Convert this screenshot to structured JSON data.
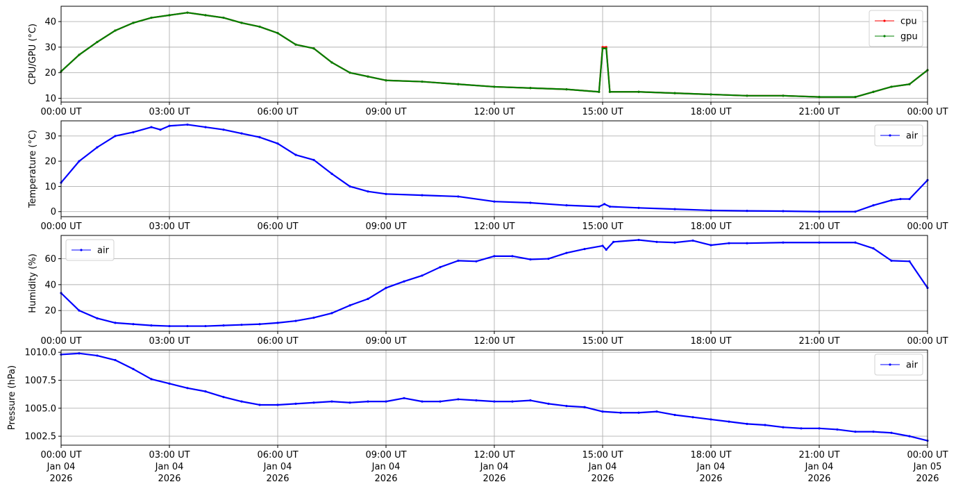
{
  "chart_data": [
    {
      "type": "line",
      "ylabel": "CPU/GPU (°C)",
      "ylim": [
        8.5,
        46
      ],
      "yticks": [
        10,
        20,
        30,
        40
      ],
      "x_ticks": [
        "00:00 UT",
        "03:00 UT",
        "06:00 UT",
        "09:00 UT",
        "12:00 UT",
        "15:00 UT",
        "18:00 UT",
        "21:00 UT",
        "00:00 UT"
      ],
      "xlim_hours": [
        0,
        24
      ],
      "grid": true,
      "legend": "top-right",
      "series": [
        {
          "name": "cpu",
          "color": "#ff0000",
          "x_hours": [
            0,
            0.5,
            1,
            1.5,
            2,
            2.5,
            3,
            3.5,
            4,
            4.5,
            5,
            5.5,
            6,
            6.5,
            7,
            7.5,
            8,
            8.5,
            9,
            10,
            11,
            12,
            13,
            14,
            14.9,
            15.0,
            15.1,
            15.2,
            16,
            17,
            18,
            19,
            20,
            21,
            22,
            22.5,
            23,
            23.5,
            24
          ],
          "values": [
            20.5,
            27,
            32,
            36.5,
            39.5,
            41.5,
            42.5,
            43.5,
            42.5,
            41.5,
            39.5,
            38,
            35.5,
            31,
            29.5,
            24,
            20,
            18.5,
            17,
            16.5,
            15.5,
            14.5,
            14,
            13.5,
            12.5,
            30,
            30,
            12.5,
            12.5,
            12,
            11.5,
            11,
            11,
            10.5,
            10.5,
            12.5,
            14.5,
            15.5,
            21
          ]
        },
        {
          "name": "gpu",
          "color": "#008000",
          "x_hours": [
            0,
            0.5,
            1,
            1.5,
            2,
            2.5,
            3,
            3.5,
            4,
            4.5,
            5,
            5.5,
            6,
            6.5,
            7,
            7.5,
            8,
            8.5,
            9,
            10,
            11,
            12,
            13,
            14,
            14.9,
            15.0,
            15.1,
            15.2,
            16,
            17,
            18,
            19,
            20,
            21,
            22,
            22.5,
            23,
            23.5,
            24
          ],
          "values": [
            20.5,
            27,
            32,
            36.5,
            39.5,
            41.5,
            42.5,
            43.5,
            42.5,
            41.5,
            39.5,
            38,
            35.5,
            31,
            29.5,
            24,
            20,
            18.5,
            17,
            16.5,
            15.5,
            14.5,
            14,
            13.5,
            12.5,
            29.5,
            29.5,
            12.5,
            12.5,
            12,
            11.5,
            11,
            11,
            10.5,
            10.5,
            12.5,
            14.5,
            15.5,
            21
          ]
        }
      ]
    },
    {
      "type": "line",
      "ylabel": "Temperature (°C)",
      "ylim": [
        -2,
        36
      ],
      "yticks": [
        0,
        10,
        20,
        30
      ],
      "x_ticks": [
        "00:00 UT",
        "03:00 UT",
        "06:00 UT",
        "09:00 UT",
        "12:00 UT",
        "15:00 UT",
        "18:00 UT",
        "21:00 UT",
        "00:00 UT"
      ],
      "xlim_hours": [
        0,
        24
      ],
      "grid": true,
      "legend": "top-right",
      "series": [
        {
          "name": "air",
          "color": "#0000ff",
          "x_hours": [
            0,
            0.5,
            1,
            1.5,
            2,
            2.5,
            2.75,
            3,
            3.5,
            4,
            4.5,
            5,
            5.5,
            6,
            6.5,
            7,
            7.5,
            8,
            8.5,
            9,
            10,
            11,
            12,
            13,
            14,
            14.9,
            15.05,
            15.2,
            16,
            17,
            18,
            19,
            20,
            21,
            22,
            22.5,
            23,
            23.25,
            23.5,
            24
          ],
          "values": [
            11.5,
            20,
            25.5,
            30,
            31.5,
            33.5,
            32.5,
            34,
            34.5,
            33.5,
            32.5,
            31,
            29.5,
            27,
            22.5,
            20.5,
            15,
            10,
            8,
            7,
            6.5,
            6,
            4,
            3.5,
            2.5,
            2,
            3,
            2,
            1.5,
            1,
            0.5,
            0.3,
            0.2,
            0,
            0,
            2.5,
            4.5,
            5,
            5,
            12.5
          ]
        }
      ]
    },
    {
      "type": "line",
      "ylabel": "Humidity (%)",
      "ylim": [
        4,
        78
      ],
      "yticks": [
        20,
        40,
        60
      ],
      "x_ticks": [
        "00:00 UT",
        "03:00 UT",
        "06:00 UT",
        "09:00 UT",
        "12:00 UT",
        "15:00 UT",
        "18:00 UT",
        "21:00 UT",
        "00:00 UT"
      ],
      "xlim_hours": [
        0,
        24
      ],
      "grid": true,
      "legend": "top-left",
      "series": [
        {
          "name": "air",
          "color": "#0000ff",
          "x_hours": [
            0,
            0.5,
            1,
            1.5,
            2,
            2.5,
            3,
            3.5,
            4,
            4.5,
            5,
            5.5,
            6,
            6.5,
            7,
            7.5,
            8,
            8.5,
            9,
            9.5,
            10,
            10.5,
            11,
            11.5,
            12,
            12.5,
            13,
            13.5,
            14,
            14.5,
            15,
            15.1,
            15.3,
            16,
            16.5,
            17,
            17.5,
            18,
            18.5,
            19,
            20,
            21,
            22,
            22.5,
            23,
            23.5,
            24
          ],
          "values": [
            33.5,
            20,
            14,
            10.5,
            9.5,
            8.5,
            8,
            8,
            8,
            8.5,
            9,
            9.5,
            10.5,
            12,
            14.5,
            18,
            24,
            29,
            37.5,
            42.5,
            47,
            53.5,
            58.5,
            58,
            62,
            62,
            59.5,
            60,
            64.5,
            67.5,
            70,
            67,
            73,
            74.5,
            73,
            72.5,
            74,
            70.5,
            72,
            72,
            72.5,
            72.5,
            72.5,
            68,
            58.5,
            58,
            37.5
          ]
        }
      ]
    },
    {
      "type": "line",
      "ylabel": "Pressure (hPa)",
      "ylim": [
        1001.7,
        1010.2
      ],
      "yticks": [
        1002.5,
        1005.0,
        1007.5,
        1010.0
      ],
      "ytick_labels": [
        "1002.5",
        "1005.0",
        "1007.5",
        "1010.0"
      ],
      "x_ticks": [
        "00:00 UT\nJan 04\n2026",
        "03:00 UT\nJan 04\n2026",
        "06:00 UT\nJan 04\n2026",
        "09:00 UT\nJan 04\n2026",
        "12:00 UT\nJan 04\n2026",
        "15:00 UT\nJan 04\n2026",
        "18:00 UT\nJan 04\n2026",
        "21:00 UT\nJan 04\n2026",
        "00:00 UT\nJan 05\n2026"
      ],
      "xlim_hours": [
        0,
        24
      ],
      "grid": true,
      "legend": "top-right",
      "series": [
        {
          "name": "air",
          "color": "#0000ff",
          "x_hours": [
            0,
            0.5,
            1,
            1.5,
            2,
            2.5,
            3,
            3.5,
            4,
            4.5,
            5,
            5.5,
            6,
            6.5,
            7,
            7.5,
            8,
            8.5,
            9,
            9.5,
            10,
            10.5,
            11,
            11.5,
            12,
            12.5,
            13,
            13.5,
            14,
            14.5,
            15,
            15.5,
            16,
            16.5,
            17,
            17.5,
            18,
            18.5,
            19,
            19.5,
            20,
            20.5,
            21,
            21.5,
            22,
            22.5,
            23,
            23.5,
            24
          ],
          "values": [
            1009.8,
            1009.9,
            1009.7,
            1009.3,
            1008.5,
            1007.6,
            1007.2,
            1006.8,
            1006.5,
            1006.0,
            1005.6,
            1005.3,
            1005.3,
            1005.4,
            1005.5,
            1005.6,
            1005.5,
            1005.6,
            1005.6,
            1005.9,
            1005.6,
            1005.6,
            1005.8,
            1005.7,
            1005.6,
            1005.6,
            1005.7,
            1005.4,
            1005.2,
            1005.1,
            1004.7,
            1004.6,
            1004.6,
            1004.7,
            1004.4,
            1004.2,
            1004.0,
            1003.8,
            1003.6,
            1003.5,
            1003.3,
            1003.2,
            1003.2,
            1003.1,
            1002.9,
            1002.9,
            1002.8,
            1002.5,
            1002.1
          ]
        }
      ]
    }
  ]
}
